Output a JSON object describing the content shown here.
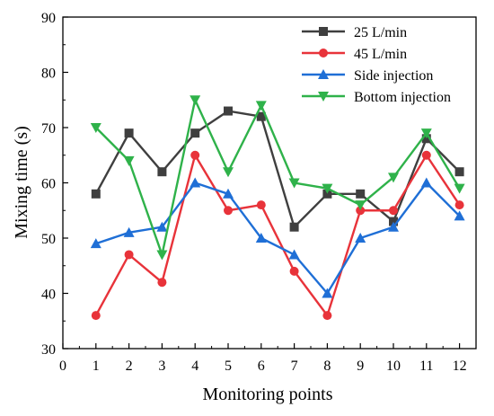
{
  "chart_data": {
    "type": "line",
    "xlabel": "Monitoring points",
    "ylabel": "Mixing time (s)",
    "xlim": [
      0,
      12.5
    ],
    "ylim": [
      30,
      90
    ],
    "xticks": [
      0,
      1,
      2,
      3,
      4,
      5,
      6,
      7,
      8,
      9,
      10,
      11,
      12
    ],
    "yticks": [
      30,
      40,
      50,
      60,
      70,
      80,
      90
    ],
    "x": [
      1,
      2,
      3,
      4,
      5,
      6,
      7,
      8,
      9,
      10,
      11,
      12
    ],
    "grid": false,
    "legend_position": "top-right",
    "series": [
      {
        "name": "25 L/min",
        "color": "#3f3f3f",
        "marker": "square",
        "values": [
          58,
          69,
          62,
          69,
          73,
          72,
          52,
          58,
          58,
          53,
          68,
          62
        ]
      },
      {
        "name": "45 L/min",
        "color": "#e8333a",
        "marker": "circle",
        "values": [
          36,
          47,
          42,
          65,
          55,
          56,
          44,
          36,
          55,
          55,
          65,
          56
        ]
      },
      {
        "name": "Side injection",
        "color": "#1f6fd6",
        "marker": "triangle-up",
        "values": [
          49,
          51,
          52,
          60,
          58,
          50,
          47,
          40,
          50,
          52,
          60,
          54
        ]
      },
      {
        "name": "Bottom injection",
        "color": "#2fb24a",
        "marker": "triangle-down",
        "values": [
          70,
          64,
          47,
          75,
          62,
          74,
          60,
          59,
          56,
          61,
          69,
          59
        ]
      }
    ]
  }
}
